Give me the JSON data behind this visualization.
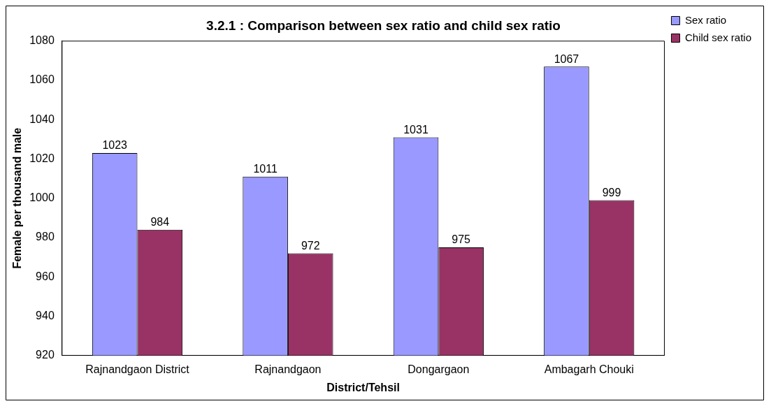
{
  "chart_data": {
    "type": "bar",
    "title": "3.2.1 : Comparison between sex ratio and child sex ratio",
    "xlabel": "District/Tehsil",
    "ylabel": "Female per thousand male",
    "categories": [
      "Rajnandgaon District",
      "Rajnandgaon",
      "Dongargaon",
      "Ambagarh Chouki"
    ],
    "series": [
      {
        "name": "Sex ratio",
        "color": "#9999ff",
        "values": [
          1023,
          1011,
          1031,
          1067
        ]
      },
      {
        "name": "Child sex ratio",
        "color": "#993366",
        "values": [
          984,
          972,
          975,
          999
        ]
      }
    ],
    "ylim": [
      920,
      1080
    ],
    "yticks": [
      920,
      940,
      960,
      980,
      1000,
      1020,
      1040,
      1060,
      1080
    ],
    "grid": false,
    "legend": "top right",
    "data_labels": true
  }
}
